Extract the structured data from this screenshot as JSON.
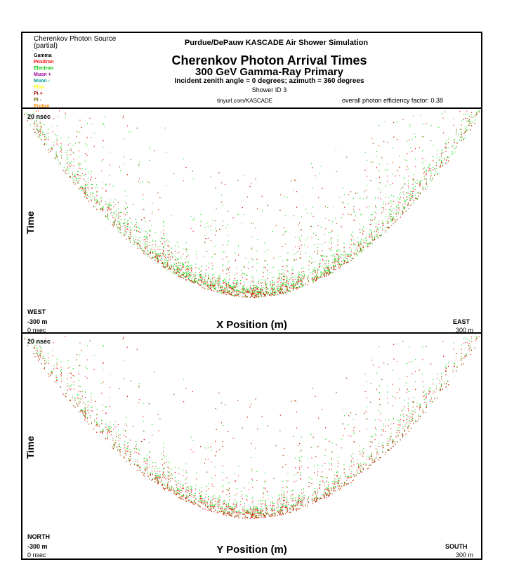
{
  "header": {
    "legend_title": "Cherenkov Photon Source",
    "legend_subtitle": "(partial)",
    "legend_items": [
      {
        "label": "Gamma",
        "color": "#000000"
      },
      {
        "label": "Positron",
        "color": "#ff0000"
      },
      {
        "label": "Electron",
        "color": "#00cc00"
      },
      {
        "label": "Muon +",
        "color": "#990099"
      },
      {
        "label": "Muon -",
        "color": "#009999"
      },
      {
        "label": "Pion",
        "color": "#ffff00"
      },
      {
        "label": "Pi +",
        "color": "#990000"
      },
      {
        "label": "Pi -",
        "color": "#666600"
      },
      {
        "label": "Proton",
        "color": "#ff8800"
      }
    ],
    "sim_title": "Purdue/DePauw KASCADE Air Shower Simulation",
    "main_title": "Cherenkov Photon Arrival Times",
    "subtitle": "300 GeV Gamma-Ray Primary",
    "incident": "Incident zenith angle =  0 degrees;  azimuth =  360 degrees",
    "shower_id": "Shower ID 3",
    "url": "tinyurl.com/KASCADE",
    "efficiency": "overall photon efficiency factor: 0.38"
  },
  "chart_data": [
    {
      "type": "scatter",
      "title": "",
      "xlabel": "X Position (m)",
      "ylabel": "Time",
      "xlim": [
        -300,
        300
      ],
      "ylim_labels": {
        "top": "20 nsec",
        "bottom": "0 nsec"
      },
      "x_tick_left": "-300 m",
      "x_tick_right": "300 m",
      "dir_left": "WEST",
      "dir_right": "EAST",
      "time_top": "20 nsec",
      "time_bottom": "0 nsec",
      "series": [
        {
          "name": "Electron",
          "color": "#00dd00"
        },
        {
          "name": "Positron",
          "color": "#ee0000"
        }
      ],
      "curve_vertex_x": 0,
      "curve_vertex_time_nsec": 1.5,
      "curve_edge_time_nsec": 19.5
    },
    {
      "type": "scatter",
      "title": "",
      "xlabel": "Y Position (m)",
      "ylabel": "Time",
      "xlim": [
        -300,
        300
      ],
      "ylim_labels": {
        "top": "20 nsec",
        "bottom": "0 nsec"
      },
      "x_tick_left": "-300 m",
      "x_tick_right": "300 m",
      "dir_left": "NORTH",
      "dir_right": "SOUTH",
      "time_top": "20 nsec",
      "time_bottom": "0 nsec",
      "series": [
        {
          "name": "Electron",
          "color": "#00dd00"
        },
        {
          "name": "Positron",
          "color": "#ee0000"
        }
      ],
      "curve_vertex_x": 0,
      "curve_vertex_time_nsec": 2.0,
      "curve_edge_time_nsec": 19.5
    }
  ]
}
